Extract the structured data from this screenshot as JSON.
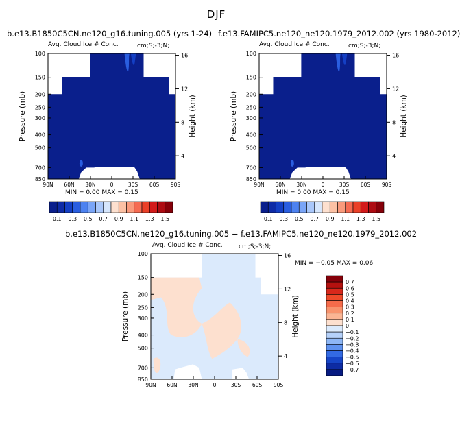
{
  "figure": {
    "title": "DJF",
    "panels": [
      {
        "run_title": "b.e13.B1850C5CN.ne120_g16.tuning.005 (yrs 1-24)",
        "left_string": "Avg. Cloud Ice # Conc.",
        "right_string": "cm;S;-3;N;",
        "ylabel": "Pressure (mb)",
        "rlabel": "Height (km)",
        "stats": "MIN =    0.00   MAX =    0.15"
      },
      {
        "run_title": "f.e13.FAMIPC5.ne120_ne120.1979_2012.002 (yrs 1980-2012)",
        "left_string": "Avg. Cloud Ice # Conc.",
        "right_string": "cm;S;-3;N;",
        "ylabel": "Pressure (mb)",
        "rlabel": "Height (km)",
        "stats": "MIN =    0.00   MAX =    0.15"
      },
      {
        "run_title": "b.e13.B1850C5CN.ne120_g16.tuning.005 − f.e13.FAMIPC5.ne120_ne120.1979_2012.002",
        "left_string": "Avg. Cloud Ice # Conc.",
        "right_string": "cm;S;-3;N;",
        "ylabel": "Pressure (mb)",
        "rlabel": "Height (km)",
        "stats": "MIN =  −0.05   MAX =    0.06"
      }
    ]
  },
  "chart_data": [
    {
      "type": "heatmap",
      "title": "b.e13.B1850C5CN.ne120_g16.tuning.005 (yrs 1-24)",
      "xlabel": "",
      "ylabel": "Pressure (mb)",
      "y2label": "Height (km)",
      "x_ticks": [
        "90N",
        "60N",
        "30N",
        "0",
        "30S",
        "60S",
        "90S"
      ],
      "y_ticks": [
        100,
        150,
        200,
        250,
        300,
        400,
        500,
        700,
        850
      ],
      "y2_ticks": [
        4,
        8,
        12,
        16
      ],
      "ylim": [
        850,
        100
      ],
      "min": 0.0,
      "max": 0.15,
      "colorbar_labels": [
        "0.1",
        "0.3",
        "0.5",
        "0.7",
        "0.9",
        "1.1",
        "1.3",
        "1.5"
      ],
      "colors": [
        "#0a1f8c",
        "#0e2ba6",
        "#143fc4",
        "#2a5ee0",
        "#4d82f0",
        "#7aa5f7",
        "#a9c7fa",
        "#d6e6fc",
        "#fde0cf",
        "#fcc1a4",
        "#f99a7c",
        "#f56b52",
        "#ea4028",
        "#d21a1a",
        "#ad0b12",
        "#850009"
      ]
    },
    {
      "type": "heatmap",
      "title": "f.e13.FAMIPC5.ne120_ne120.1979_2012.002 (yrs 1980-2012)",
      "xlabel": "",
      "ylabel": "Pressure (mb)",
      "y2label": "Height (km)",
      "x_ticks": [
        "90N",
        "60N",
        "30N",
        "0",
        "30S",
        "60S",
        "90S"
      ],
      "y_ticks": [
        100,
        150,
        200,
        250,
        300,
        400,
        500,
        700,
        850
      ],
      "y2_ticks": [
        4,
        8,
        12,
        16
      ],
      "ylim": [
        850,
        100
      ],
      "min": 0.0,
      "max": 0.15,
      "colorbar_labels": [
        "0.1",
        "0.3",
        "0.5",
        "0.7",
        "0.9",
        "1.1",
        "1.3",
        "1.5"
      ],
      "colors": [
        "#0a1f8c",
        "#0e2ba6",
        "#143fc4",
        "#2a5ee0",
        "#4d82f0",
        "#7aa5f7",
        "#a9c7fa",
        "#d6e6fc",
        "#fde0cf",
        "#fcc1a4",
        "#f99a7c",
        "#f56b52",
        "#ea4028",
        "#d21a1a",
        "#ad0b12",
        "#850009"
      ]
    },
    {
      "type": "heatmap",
      "title": "b.e13.B1850C5CN.ne120_g16.tuning.005 − f.e13.FAMIPC5.ne120_ne120.1979_2012.002",
      "xlabel": "",
      "ylabel": "Pressure (mb)",
      "y2label": "Height (km)",
      "x_ticks": [
        "90N",
        "60N",
        "30N",
        "0",
        "30S",
        "60S",
        "90S"
      ],
      "y_ticks": [
        100,
        150,
        200,
        250,
        300,
        400,
        500,
        700,
        850
      ],
      "y2_ticks": [
        4,
        8,
        12,
        16
      ],
      "ylim": [
        850,
        100
      ],
      "min": -0.05,
      "max": 0.06,
      "colorbar_labels": [
        "0.7",
        "0.6",
        "0.5",
        "0.4",
        "0.3",
        "0.2",
        "0.1",
        "0",
        "−0.1",
        "−0.2",
        "−0.3",
        "−0.4",
        "−0.5",
        "−0.6",
        "−0.7"
      ],
      "colors": [
        "#850009",
        "#b5110f",
        "#d8281b",
        "#ee4a2a",
        "#f56b4a",
        "#f8936d",
        "#fbb594",
        "#fde0cf",
        "#dbeafc",
        "#b5d1fa",
        "#8db6f5",
        "#5f92ef",
        "#336ae3",
        "#1645c7",
        "#0d2ba3",
        "#071b82"
      ]
    }
  ]
}
